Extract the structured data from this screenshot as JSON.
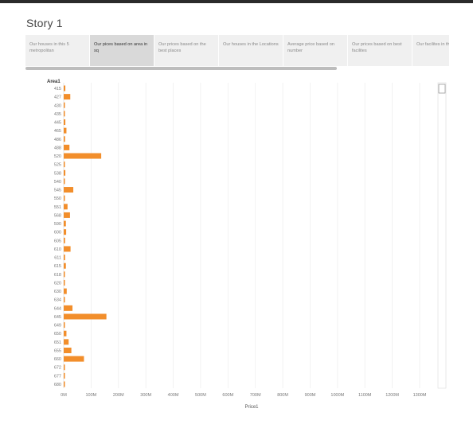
{
  "story": {
    "title": "Story 1"
  },
  "tabs": [
    {
      "label": "Our houses in this 5 metropolitan",
      "active": false
    },
    {
      "label": "Our pices based on area in sq",
      "active": true
    },
    {
      "label": "Our prices based on the best places",
      "active": false
    },
    {
      "label": "Our houses in the Locations",
      "active": false
    },
    {
      "label": "Average price based on number",
      "active": false
    },
    {
      "label": "Our prices based on best facilites",
      "active": false
    },
    {
      "label": "Our facilites in the best p...",
      "active": false
    }
  ],
  "colors": {
    "bar": "#f28e2b",
    "grid": "#efefef"
  },
  "chart_data": {
    "type": "bar",
    "orientation": "horizontal",
    "title": "",
    "ylabel": "Area1",
    "xlabel": "Price1",
    "xlim": [
      0,
      1300
    ],
    "x_ticks": [
      "0M",
      "100M",
      "200M",
      "300M",
      "400M",
      "500M",
      "600M",
      "700M",
      "800M",
      "900M",
      "1000M",
      "1100M",
      "1200M",
      "1300M"
    ],
    "grid": true,
    "categories": [
      "415",
      "427",
      "430",
      "435",
      "445",
      "465",
      "486",
      "488",
      "520",
      "525",
      "538",
      "540",
      "545",
      "550",
      "551",
      "568",
      "590",
      "600",
      "605",
      "610",
      "611",
      "615",
      "618",
      "620",
      "630",
      "634",
      "644",
      "645",
      "649",
      "650",
      "651",
      "655",
      "660",
      "672",
      "677",
      "680"
    ],
    "values": [
      6,
      24,
      3,
      3,
      6,
      10,
      5,
      21,
      137,
      2,
      6,
      2,
      35,
      3,
      14,
      23,
      8,
      9,
      5,
      25,
      5,
      8,
      3,
      2,
      11,
      4,
      32,
      156,
      4,
      10,
      18,
      28,
      74,
      3,
      3,
      3
    ]
  }
}
